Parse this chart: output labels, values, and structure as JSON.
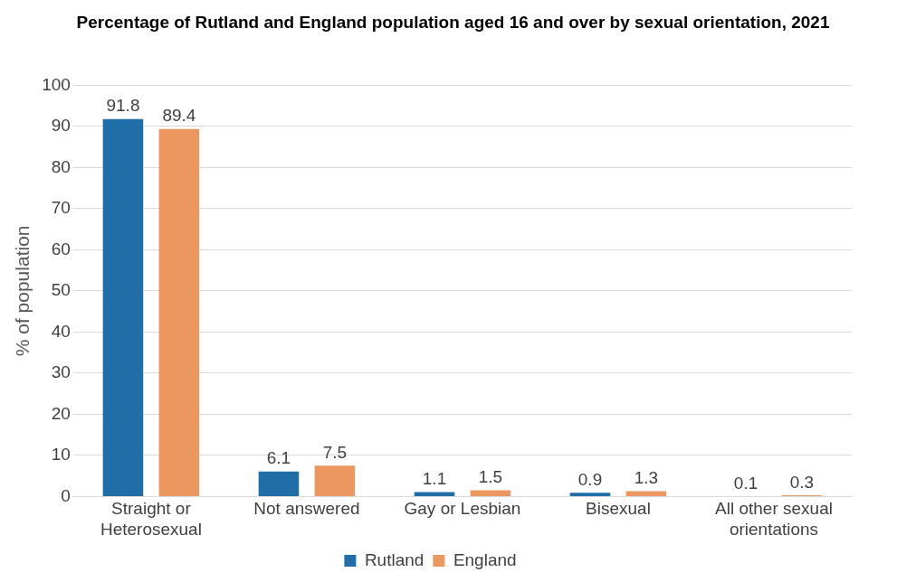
{
  "chart_data": {
    "type": "bar",
    "title": "Percentage of Rutland and England population aged 16 and over by sexual orientation, 2021",
    "ylabel": "% of population",
    "categories": [
      "Straight or Heterosexual",
      "Not answered",
      "Gay or Lesbian",
      "Bisexual",
      "All other sexual orientations"
    ],
    "series": [
      {
        "name": "Rutland",
        "color": "#1f6ea8",
        "values": [
          91.8,
          6.1,
          1.1,
          0.9,
          0.1
        ]
      },
      {
        "name": "England",
        "color": "#ec9660",
        "values": [
          89.4,
          7.5,
          1.5,
          1.3,
          0.3
        ]
      }
    ],
    "ylim": [
      0,
      100
    ],
    "yticks": [
      0,
      10,
      20,
      30,
      40,
      50,
      60,
      70,
      80,
      90,
      100
    ],
    "grid": "y",
    "legend": "bottom",
    "data_labels": true
  }
}
